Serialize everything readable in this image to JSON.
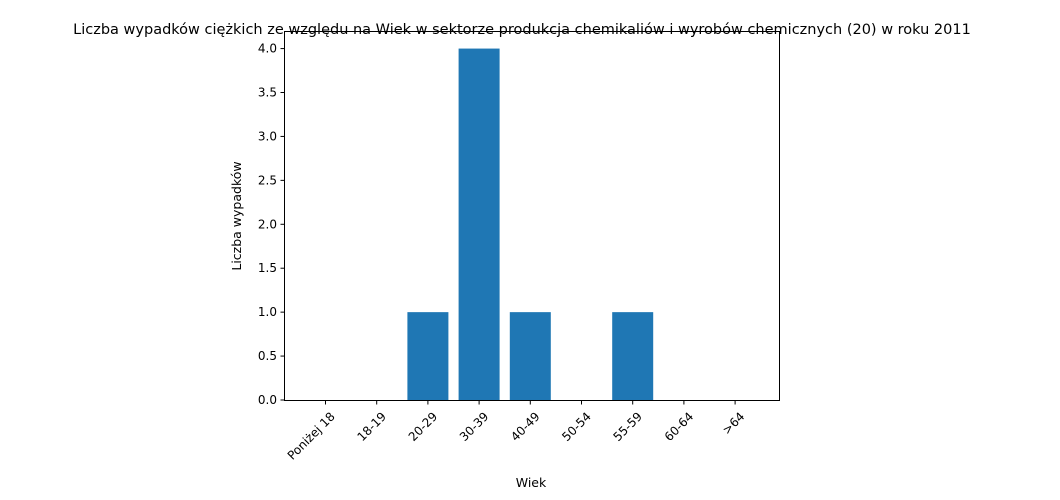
{
  "chart_data": {
    "type": "bar",
    "title": "Liczba wypadków ciężkich ze względu na Wiek w sektorze produkcja chemikaliów i wyrobów  chemicznych (20) w roku 2011",
    "xlabel": "Wiek",
    "ylabel": "Liczba wypadków",
    "categories": [
      "Poniżej 18",
      "18-19",
      "20-29",
      "30-39",
      "40-49",
      "50-54",
      "55-59",
      "60-64",
      ">64"
    ],
    "values": [
      0,
      0,
      1,
      4,
      1,
      0,
      1,
      0,
      0
    ],
    "ylim": [
      0,
      4.2
    ],
    "yticks": [
      "0.0",
      "0.5",
      "1.0",
      "1.5",
      "2.0",
      "2.5",
      "3.0",
      "3.5",
      "4.0"
    ],
    "bar_color": "#1f77b4",
    "grid": false,
    "legend": "none"
  }
}
